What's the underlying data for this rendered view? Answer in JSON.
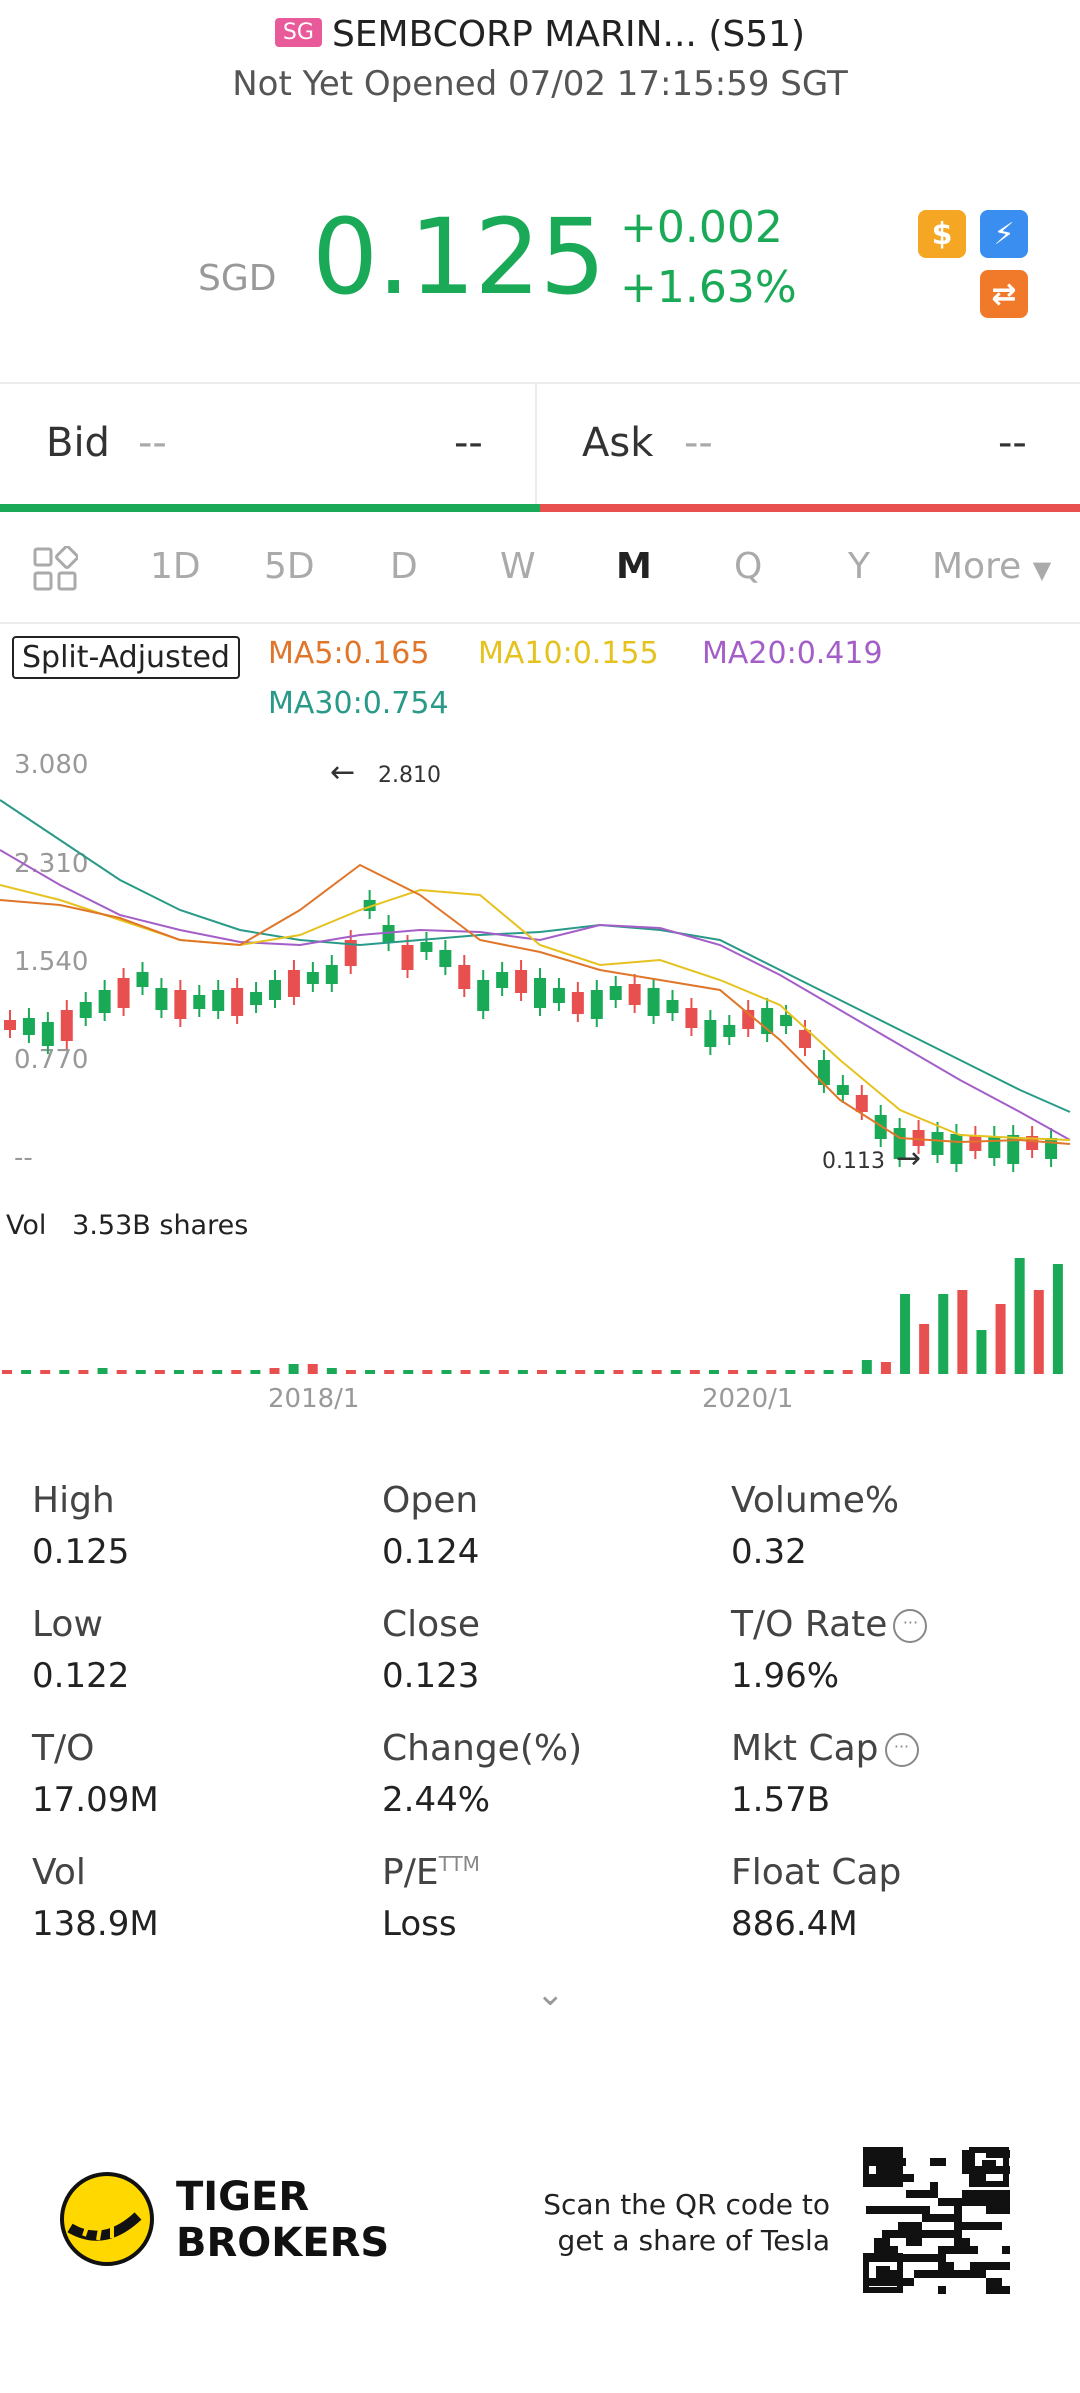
{
  "header": {
    "market_badge": "SG",
    "title": "SEMBCORP MARIN... (S51)",
    "status": "Not Yet Opened 07/02 17:15:59 SGT"
  },
  "quote": {
    "currency": "SGD",
    "price": "0.125",
    "change": "+0.002",
    "change_pct": "+1.63%"
  },
  "icons": [
    "dollar-icon",
    "lightning-icon",
    "swap-icon"
  ],
  "bid_ask": {
    "bid_label": "Bid",
    "bid_price": "--",
    "bid_size": "--",
    "ask_label": "Ask",
    "ask_price": "--",
    "ask_size": "--"
  },
  "tabs": [
    "1D",
    "5D",
    "D",
    "W",
    "M",
    "Q",
    "Y",
    "More"
  ],
  "active_tab": "M",
  "chart": {
    "mode_label": "Split-Adjusted",
    "ma5": "MA5:0.165",
    "ma10": "MA10:0.155",
    "ma20": "MA20:0.419",
    "ma30": "MA30:0.754",
    "y_ticks": [
      "3.080",
      "2.310",
      "1.540",
      "0.770",
      "--"
    ],
    "high_marker": "2.810",
    "low_marker": "0.113",
    "vol_label": "Vol",
    "vol_value": "3.53B shares",
    "x_ticks": [
      "2018/1",
      "2020/1"
    ]
  },
  "chart_data": {
    "type": "candlestick",
    "y_ticks": [
      3.08,
      2.31,
      1.54,
      0.77
    ],
    "high": 2.81,
    "low": 0.113,
    "x_ticks": [
      "2018/1",
      "2020/1"
    ]
  },
  "stats": [
    {
      "label": "High",
      "value": "0.125"
    },
    {
      "label": "Open",
      "value": "0.124"
    },
    {
      "label": "Volume%",
      "value": "0.32"
    },
    {
      "label": "Low",
      "value": "0.122"
    },
    {
      "label": "Close",
      "value": "0.123"
    },
    {
      "label": "T/O Rate",
      "value": "1.96%"
    },
    {
      "label": "T/O",
      "value": "17.09M"
    },
    {
      "label": "Change(%)",
      "value": "2.44%"
    },
    {
      "label": "Mkt Cap",
      "value": "1.57B"
    },
    {
      "label": "Vol",
      "value": "138.9M"
    },
    {
      "label": "P/E",
      "value": "Loss"
    },
    {
      "label": "Float Cap",
      "value": "886.4M"
    }
  ],
  "pe_superscript": "TTM",
  "footer": {
    "brand_line1": "TIGER",
    "brand_line2": "BROKERS",
    "qr_line1": "Scan the QR code to",
    "qr_line2": "get a share of Tesla"
  },
  "colors": {
    "up": "#1aaa57",
    "down": "#e85050",
    "ma5": "#e0762a",
    "ma10": "#e6c21e",
    "ma20": "#a45ec8",
    "ma30": "#2a9a88"
  }
}
